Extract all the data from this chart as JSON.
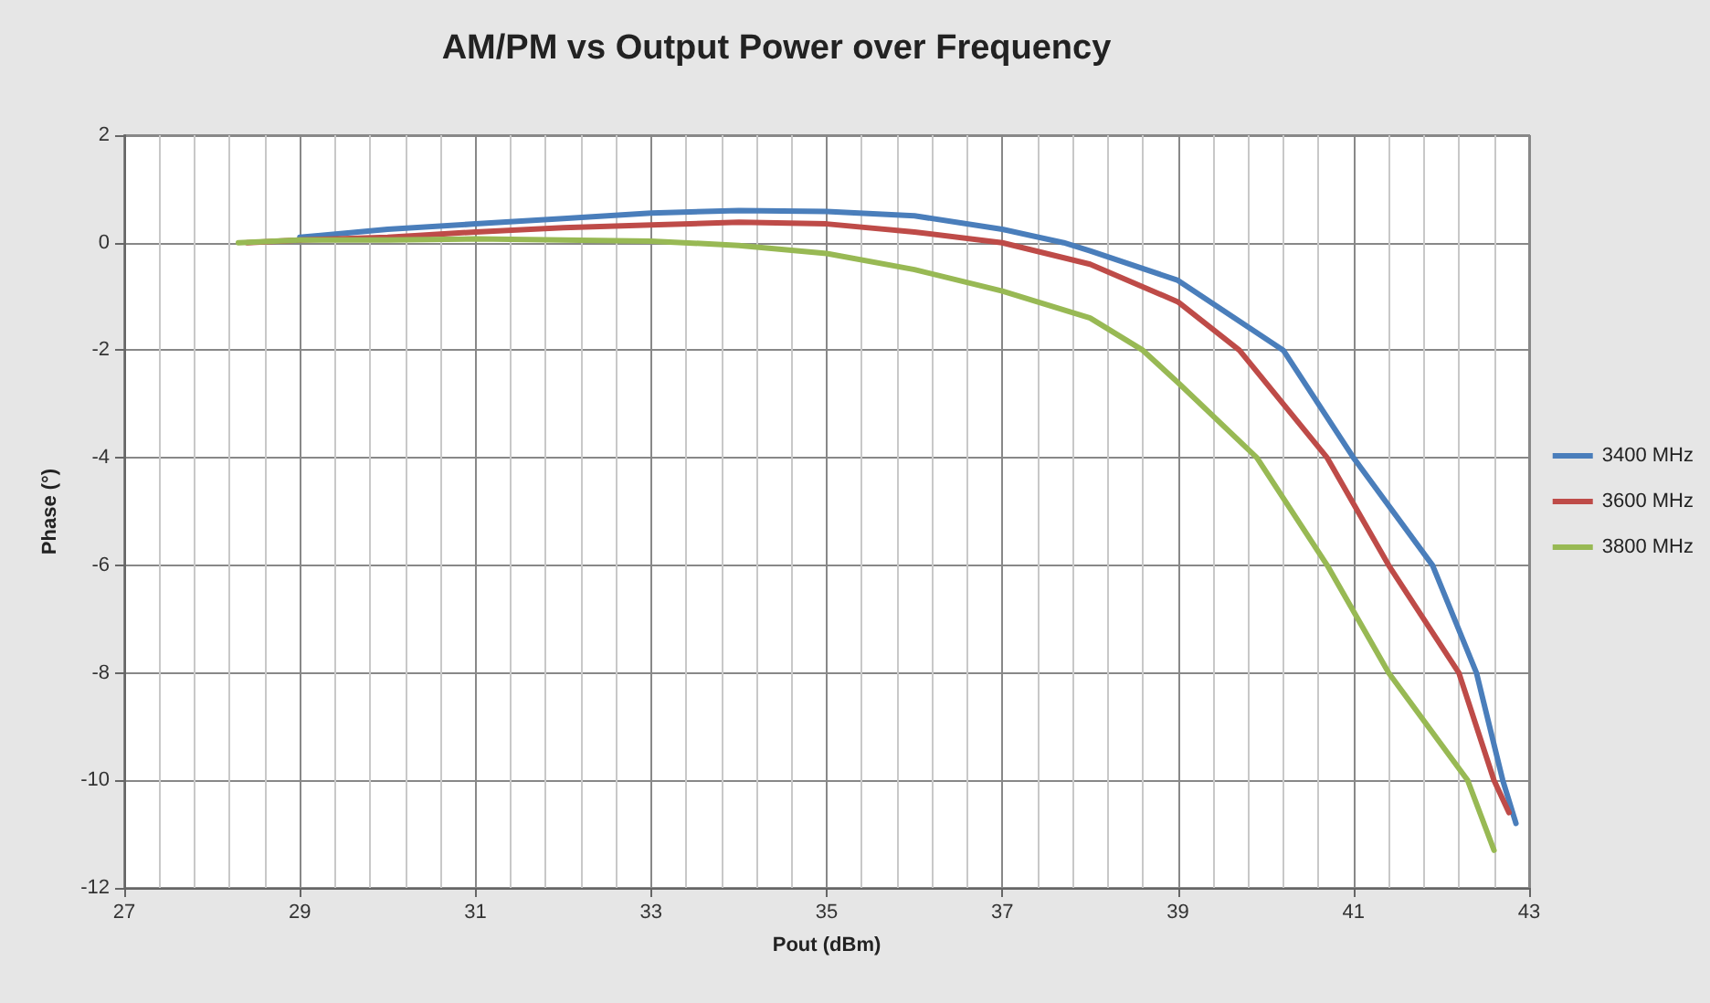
{
  "chart_data": {
    "type": "line",
    "title": "AM/PM vs Output Power over Frequency",
    "xlabel": "Pout (dBm)",
    "ylabel": "Phase (°)",
    "xlim": [
      27,
      43
    ],
    "xticks": [
      27,
      29,
      31,
      33,
      35,
      37,
      39,
      41,
      43
    ],
    "ylim": [
      -12,
      2
    ],
    "yticks": [
      -12,
      -10,
      -8,
      -6,
      -4,
      -2,
      0,
      2
    ],
    "grid": true,
    "legend": "right",
    "marker": "none",
    "line_style": "solid",
    "series": [
      {
        "name": "3400 MHz",
        "color": "#4a7ebb",
        "x": [
          29,
          30,
          31,
          32,
          33,
          34,
          35,
          36,
          37,
          37.7,
          38,
          39,
          40.2,
          41,
          41.9,
          42.4,
          42.7,
          42.85
        ],
        "values": [
          0.1,
          0.25,
          0.35,
          0.45,
          0.55,
          0.6,
          0.58,
          0.5,
          0.25,
          0,
          -0.15,
          -0.7,
          -2,
          -4,
          -6,
          -8,
          -10,
          -10.8
        ]
      },
      {
        "name": "3600 MHz",
        "color": "#be4b48",
        "x": [
          28.4,
          29,
          30,
          31,
          32,
          33,
          34,
          35,
          36,
          37,
          38,
          39,
          39.7,
          40.7,
          41.4,
          42.2,
          42.6,
          42.77
        ],
        "values": [
          0,
          0.05,
          0.1,
          0.2,
          0.28,
          0.33,
          0.38,
          0.35,
          0.2,
          0,
          -0.4,
          -1.1,
          -2,
          -4,
          -6,
          -8,
          -10,
          -10.6
        ]
      },
      {
        "name": "3800 MHz",
        "color": "#98b954",
        "x": [
          28.3,
          29,
          30,
          31,
          32,
          33,
          34,
          35,
          36,
          37,
          38,
          38.6,
          39,
          39.9,
          40.7,
          41.4,
          42.3,
          42.6
        ],
        "values": [
          0,
          0.05,
          0.05,
          0.07,
          0.05,
          0.03,
          -0.05,
          -0.2,
          -0.5,
          -0.9,
          -1.4,
          -2,
          -2.6,
          -4,
          -6,
          -8,
          -10,
          -11.3
        ]
      }
    ]
  }
}
